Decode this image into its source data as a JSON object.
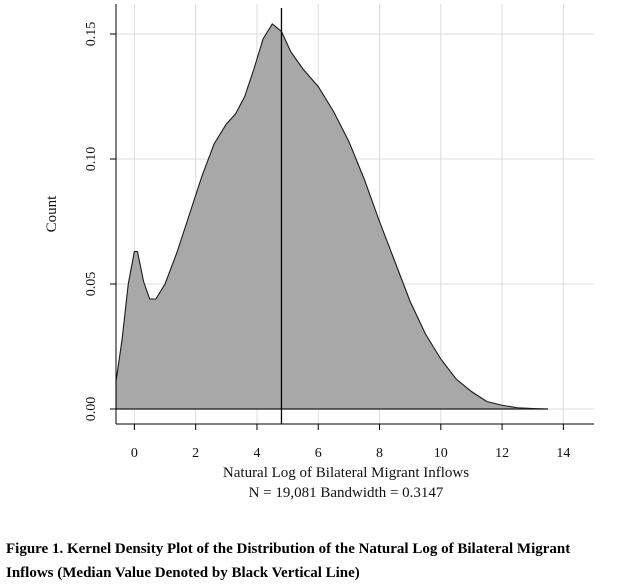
{
  "chart_data": {
    "type": "area",
    "xlabel": "Natural Log of Bilateral Migrant Inflows",
    "ylabel": "Count",
    "note": "N = 19,081  Bandwidth = 0.3147",
    "xlim": [
      -0.6,
      15.0
    ],
    "ylim": [
      -0.006,
      0.162
    ],
    "x_ticks": [
      0,
      2,
      4,
      6,
      8,
      10,
      12,
      14
    ],
    "y_ticks": [
      "0.00",
      "0.05",
      "0.10",
      "0.15"
    ],
    "grid": true,
    "fill_color": "#a8a8a8",
    "median": 4.8,
    "series": [
      {
        "x": [
          -0.6,
          -0.4,
          -0.2,
          0.0,
          0.1,
          0.3,
          0.5,
          0.7,
          1.0,
          1.4,
          1.8,
          2.2,
          2.6,
          3.0,
          3.3,
          3.6,
          3.9,
          4.2,
          4.5,
          4.8,
          5.1,
          5.5,
          6.0,
          6.5,
          7.0,
          7.5,
          8.0,
          8.5,
          9.0,
          9.5,
          10.0,
          10.5,
          11.0,
          11.5,
          12.0,
          12.5,
          13.0,
          13.5
        ],
        "y": [
          0.011,
          0.028,
          0.05,
          0.063,
          0.063,
          0.051,
          0.044,
          0.044,
          0.05,
          0.063,
          0.078,
          0.093,
          0.106,
          0.114,
          0.118,
          0.125,
          0.136,
          0.148,
          0.154,
          0.151,
          0.143,
          0.136,
          0.129,
          0.119,
          0.107,
          0.092,
          0.075,
          0.059,
          0.043,
          0.03,
          0.02,
          0.012,
          0.007,
          0.003,
          0.0015,
          0.0005,
          0.0002,
          0.0
        ]
      }
    ]
  },
  "caption": {
    "line1": "Figure 1. Kernel Density Plot of the Distribution of the Natural Log of Bilateral Migrant",
    "line2": "Inflows (Median Value Denoted by Black Vertical Line)"
  }
}
